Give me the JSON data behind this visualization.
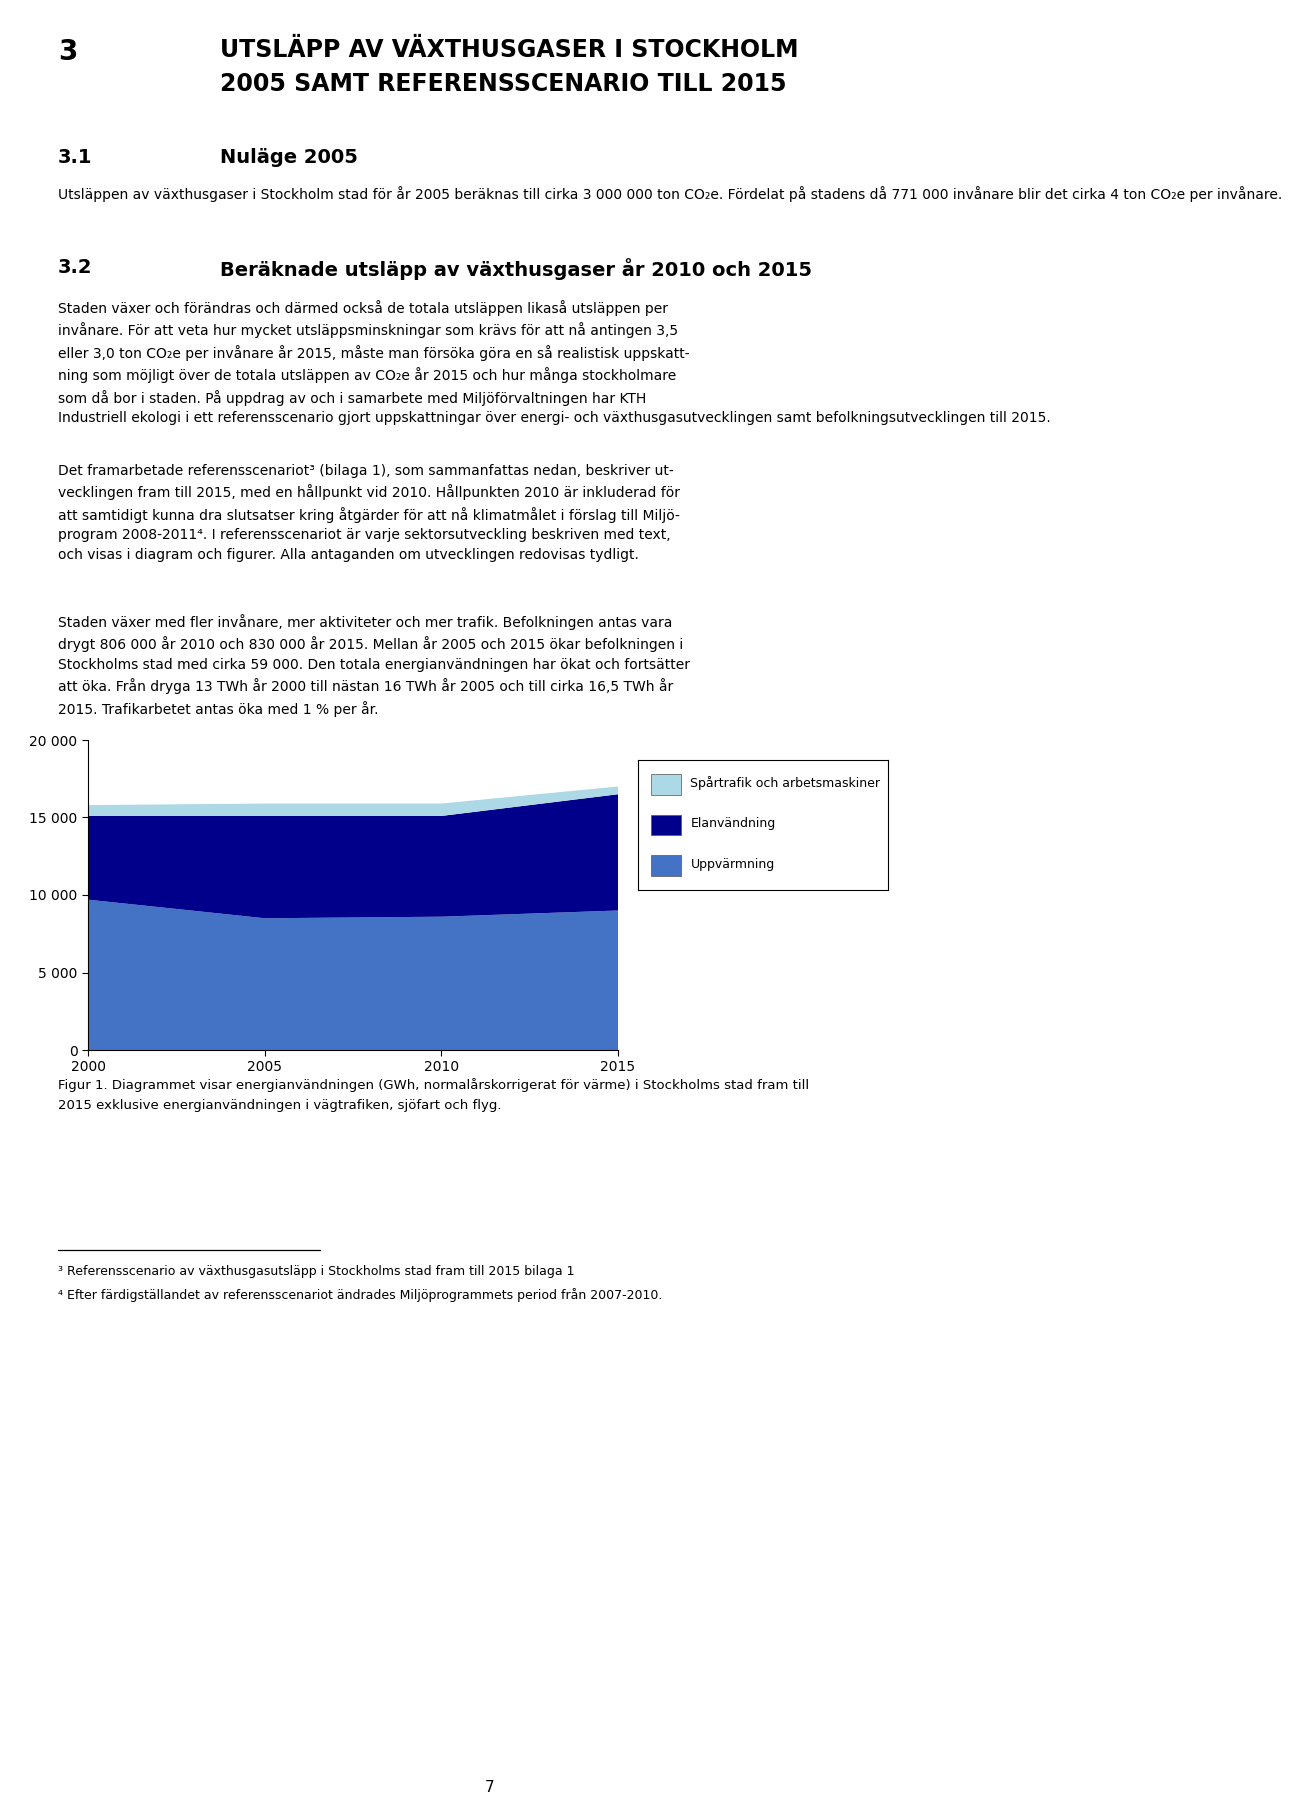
{
  "page_title_line1": "UTSLÄPP AV VÄXTHUSGASER I STOCKHOLM",
  "page_title_line2": "2005 SAMT REFERENSSCENARIO TILL 2015",
  "chapter_num": "3",
  "section1_num": "3.1",
  "section1_title": "Nuläge 2005",
  "section1_body": "Utsläppen av växthusgaser i Stockholm stad för år 2005 beräknas till cirka 3 000 000 ton CO₂e. Fördelat på stadens då 771 000 invånare blir det cirka 4 ton CO₂e per invånare.",
  "section2_num": "3.2",
  "section2_title": "Beräknade utsläpp av växthusgaser år 2010 och 2015",
  "section2_body1": "Staden växer och förändras och därmed också de totala utsläppen likaså utsläppen per\ninvånare. För att veta hur mycket utsläppsminskningar som krävs för att nå antingen 3,5\neller 3,0 ton CO₂e per invånare år 2015, måste man försöka göra en så realistisk uppskatt-\nning som möjligt över de totala utsläppen av CO₂e år 2015 och hur många stockholmare\nsom då bor i staden. På uppdrag av och i samarbete med Miljöförvaltningen har KTH\nIndustriell ekologi i ett referensscenario gjort uppskattningar över energi- och växthusgasutvecklingen samt befolkningsutvecklingen till 2015.",
  "section2_body2": "Det framarbetade referensscenariot³ (bilaga 1), som sammanfattas nedan, beskriver ut-\nvecklingen fram till 2015, med en hållpunkt vid 2010. Hållpunkten 2010 är inkluderad för\natt samtidigt kunna dra slutsatser kring åtgärder för att nå klimatmålet i förslag till Miljö-\nprogram 2008-2011⁴. I referensscenariot är varje sektorsutveckling beskriven med text,\noch visas i diagram och figurer. Alla antaganden om utvecklingen redovisas tydligt.",
  "section2_body3": "Staden växer med fler invånare, mer aktiviteter och mer trafik. Befolkningen antas vara\ndrygt 806 000 år 2010 och 830 000 år 2015. Mellan år 2005 och 2015 ökar befolkningen i\nStockholms stad med cirka 59 000. Den totala energianvändningen har ökat och fortsätter\natt öka. Från dryga 13 TWh år 2000 till nästan 16 TWh år 2005 och till cirka 16,5 TWh år\n2015. Trafikarbetet antas öka med 1 % per år.",
  "chart_years": [
    2000,
    2005,
    2010,
    2015
  ],
  "uppvarmning": [
    9700,
    8500,
    8600,
    9000
  ],
  "elanvandning": [
    5400,
    6600,
    6500,
    7500
  ],
  "spartrafik": [
    700,
    800,
    800,
    500
  ],
  "ytick_values": [
    0,
    5000,
    10000,
    15000,
    20000
  ],
  "ytick_labels": [
    "0",
    "5 000",
    "10 000",
    "15 000",
    "20 000"
  ],
  "legend_labels": [
    "Spårtrafik och arbetsmaskiner",
    "Elanvändning",
    "Uppvärmning"
  ],
  "color_uppvarmning": "#4472C4",
  "color_elanvandning": "#00008B",
  "color_spartrafik": "#ADD8E6",
  "figcaption_line1": "Figur 1. Diagrammet visar energianvändningen (GWh, normalårskorrigerat för värme) i Stockholms stad fram till",
  "figcaption_line2": "2015 exklusive energianvändningen i vägtrafiken, sjöfart och flyg.",
  "footnote_line": "___________________________",
  "footnote1": "³ Referensscenario av växthusgasutsläpp i Stockholms stad fram till 2015 bilaga 1",
  "footnote2": "⁴ Efter färdigställandet av referensscenariot ändrades Miljöprogrammets period från 2007-2010.",
  "page_number": "7",
  "background_color": "#ffffff",
  "text_color": "#000000"
}
